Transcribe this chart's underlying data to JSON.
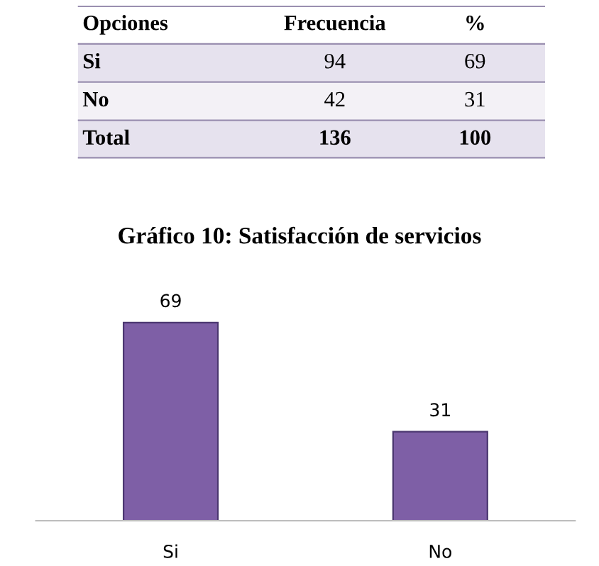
{
  "chart_data": [
    {
      "type": "other",
      "annotations": [
        "Opciones",
        "Frecuencia",
        "%",
        "Si",
        "94",
        "69",
        "No",
        "42",
        "31",
        "Total",
        "136",
        "100"
      ]
    },
    {
      "type": "bar",
      "title": "Gráfico 10: Satisfacción de servicios",
      "categories": [
        "Si",
        "No"
      ],
      "values": [
        69,
        31
      ],
      "color": "#7e5fa6",
      "data_labels": true,
      "grid": false,
      "legend": false
    }
  ]
}
